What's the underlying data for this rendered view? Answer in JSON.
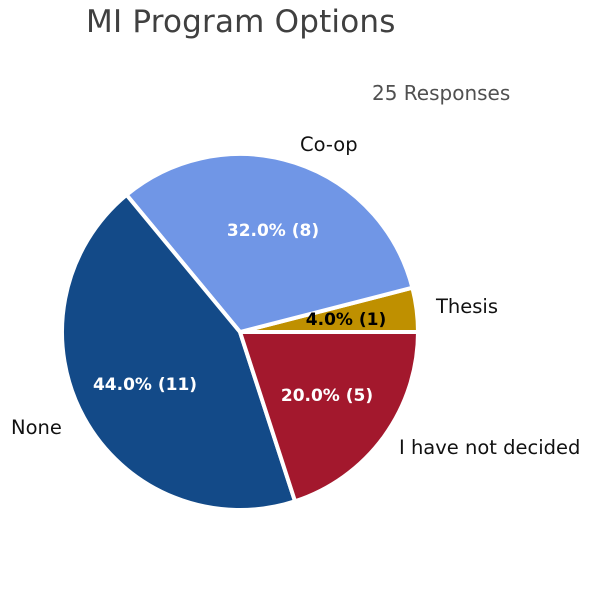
{
  "chart_data": {
    "type": "pie",
    "title": "MI Program Options",
    "subtitle": "25 Responses",
    "slices": [
      {
        "label": "Thesis",
        "value": 1,
        "pct_label": "4.0% (1)",
        "color": "#bf9000",
        "text_color": "#000000"
      },
      {
        "label": "Co-op",
        "value": 8,
        "pct_label": "32.0% (8)",
        "color": "#7096e6",
        "text_color": "#ffffff"
      },
      {
        "label": "None",
        "value": 11,
        "pct_label": "44.0% (11)",
        "color": "#134a88",
        "text_color": "#ffffff"
      },
      {
        "label": "I have not decided",
        "value": 5,
        "pct_label": "20.0% (5)",
        "color": "#a3182d",
        "text_color": "#ffffff"
      }
    ]
  }
}
